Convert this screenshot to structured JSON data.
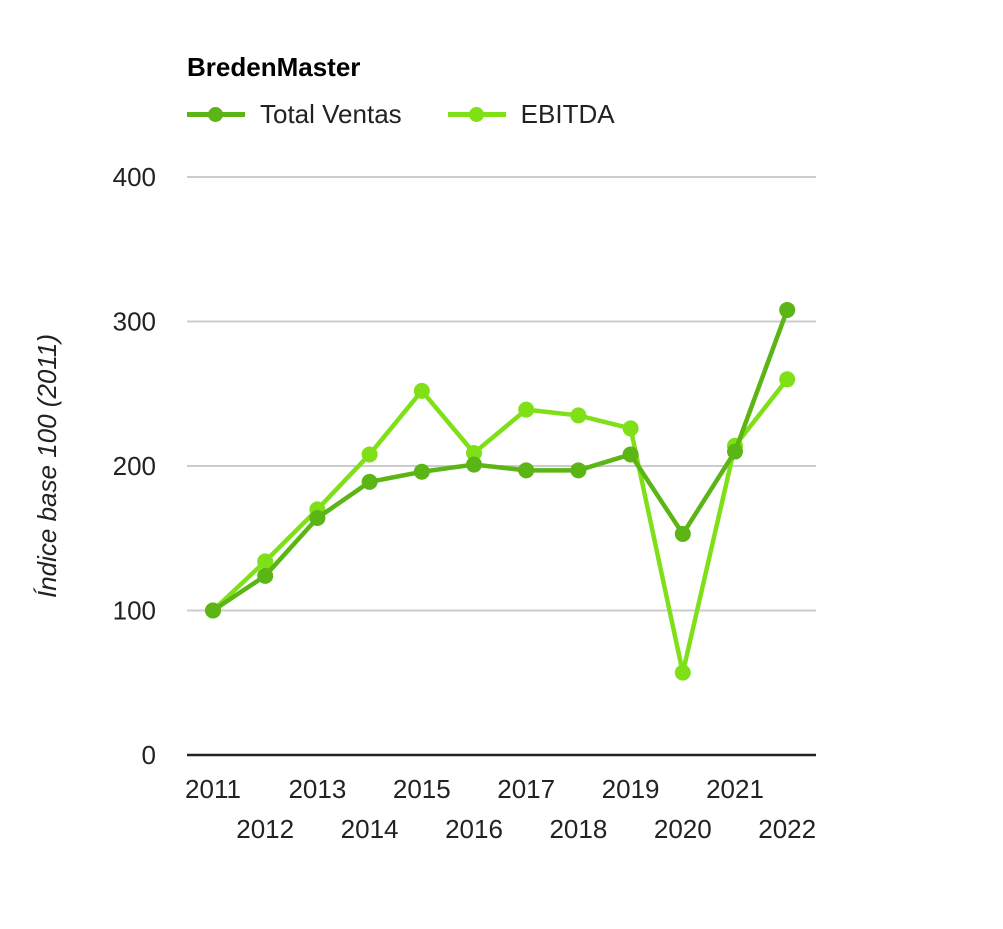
{
  "chart_data": {
    "type": "line",
    "title": "BredenMaster",
    "ylabel": "Índice base 100 (2011)",
    "xlabel": "",
    "x": [
      "2011",
      "2012",
      "2013",
      "2014",
      "2015",
      "2016",
      "2017",
      "2018",
      "2019",
      "2020",
      "2021",
      "2022"
    ],
    "ylim": [
      0,
      400
    ],
    "yticks": [
      "0",
      "100",
      "200",
      "300",
      "400"
    ],
    "grid": true,
    "legend_position": "top-left",
    "series": [
      {
        "name": "Total Ventas",
        "color": "#5bb515",
        "values": [
          100,
          124,
          164,
          189,
          196,
          201,
          197,
          197,
          208,
          153,
          210,
          308
        ]
      },
      {
        "name": "EBITDA",
        "color": "#7fe018",
        "values": [
          100,
          134,
          170,
          208,
          252,
          209,
          239,
          235,
          226,
          57,
          214,
          260
        ]
      }
    ]
  }
}
